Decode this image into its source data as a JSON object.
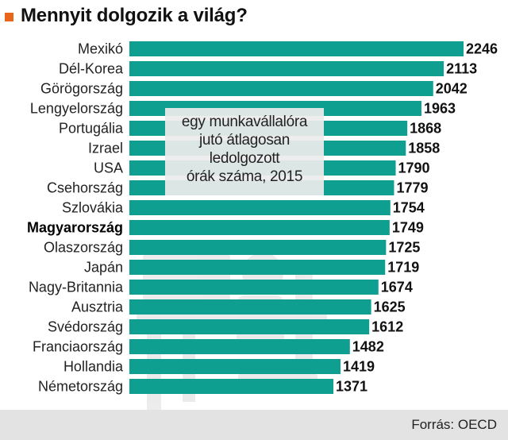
{
  "header": {
    "title": "Mennyit dolgozik a világ?"
  },
  "annotation": {
    "lines": [
      "egy munkavállalóra",
      "jutó átlagosan",
      "ledolgozott",
      "órák száma, 2015"
    ]
  },
  "footer": {
    "source": "Forrás: OECD"
  },
  "colors": {
    "bar": "#0e9f91",
    "accent": "#e8651b",
    "highlight_label": "#000000"
  },
  "chart_data": {
    "type": "bar",
    "orientation": "horizontal",
    "title": "Mennyit dolgozik a világ?",
    "categories": [
      "Mexikó",
      "Dél-Korea",
      "Görögország",
      "Lengyelország",
      "Portugália",
      "Izrael",
      "USA",
      "Csehország",
      "Szlovákia",
      "Magyarország",
      "Olaszország",
      "Japán",
      "Nagy-Britannia",
      "Ausztria",
      "Svédország",
      "Franciaország",
      "Hollandia",
      "Németország"
    ],
    "values": [
      2246,
      2113,
      2042,
      1963,
      1868,
      1858,
      1790,
      1779,
      1754,
      1749,
      1725,
      1719,
      1674,
      1625,
      1612,
      1482,
      1419,
      1371
    ],
    "highlighted_category": "Magyarország",
    "data_labels": true,
    "grid": false
  }
}
